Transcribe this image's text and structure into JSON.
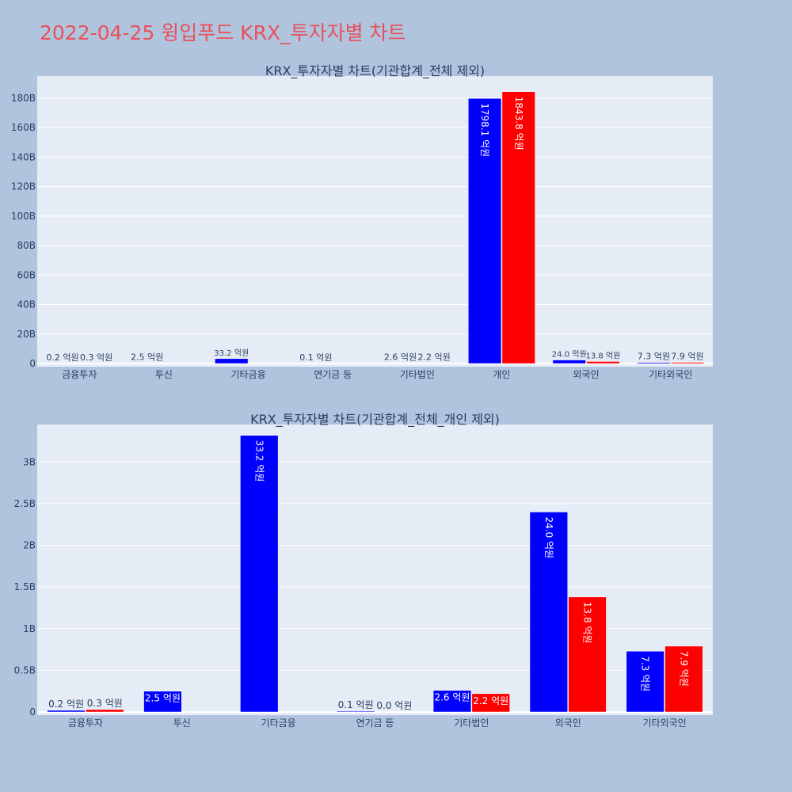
{
  "page_title": "2022-04-25 윙입푸드 KRX_투자자별 차트",
  "colors": {
    "background": "#b0c4de",
    "plot_bg": "#e5ecf6",
    "title": "#e8505b",
    "series1": "#0000ff",
    "series2": "#ff0000"
  },
  "chart_data": [
    {
      "type": "bar",
      "title": "KRX_투자자별 차트(기관합계_전체 제외)",
      "xlabel": "",
      "ylabel": "",
      "categories": [
        "금융투자",
        "투신",
        "기타금융",
        "연기금 등",
        "기타법인",
        "개인",
        "외국인",
        "기타외국인"
      ],
      "ylim": [
        0,
        195
      ],
      "y_unit_scale": "B",
      "yticks": [
        0,
        20,
        40,
        60,
        80,
        100,
        120,
        140,
        160,
        180
      ],
      "ytick_labels": [
        "0",
        "20B",
        "40B",
        "60B",
        "80B",
        "100B",
        "120B",
        "140B",
        "160B",
        "180B"
      ],
      "grid": true,
      "series": [
        {
          "color": "#0000ff",
          "values": [
            0.02,
            0.25,
            3.32,
            0.01,
            0.26,
            179.81,
            2.4,
            0.73
          ],
          "labels": [
            "0.2 억원",
            "2.5 억원",
            "33.2 억원",
            "0.1 억원",
            "2.6 억원",
            "1798.1 억원",
            "24.0 억원",
            "7.3 억원"
          ]
        },
        {
          "color": "#ff0000",
          "values": [
            0.03,
            null,
            null,
            null,
            0.22,
            184.38,
            1.38,
            0.79
          ],
          "labels": [
            "0.3 억원",
            "",
            "",
            "",
            "2.2 억원",
            "1843.8 억원",
            "13.8 억원",
            "7.9 억원"
          ]
        }
      ]
    },
    {
      "type": "bar",
      "title": "KRX_투자자별 차트(기관합계_전체_개인 제외)",
      "xlabel": "",
      "ylabel": "",
      "categories": [
        "금융투자",
        "투신",
        "기타금융",
        "연기금 등",
        "기타법인",
        "외국인",
        "기타외국인"
      ],
      "ylim": [
        0,
        3.45
      ],
      "y_unit_scale": "B",
      "yticks": [
        0,
        0.5,
        1,
        1.5,
        2,
        2.5,
        3
      ],
      "ytick_labels": [
        "0",
        "0.5B",
        "1B",
        "1.5B",
        "2B",
        "2.5B",
        "3B"
      ],
      "grid": true,
      "series": [
        {
          "color": "#0000ff",
          "values": [
            0.02,
            0.25,
            3.32,
            0.01,
            0.26,
            2.4,
            0.73
          ],
          "labels": [
            "0.2 억원",
            "2.5 억원",
            "33.2 억원",
            "0.1 억원",
            "2.6 억원",
            "24.0 억원",
            "7.3 억원"
          ]
        },
        {
          "color": "#ff0000",
          "values": [
            0.03,
            null,
            null,
            0.0,
            0.22,
            1.38,
            0.79
          ],
          "labels": [
            "0.3 억원",
            "",
            "",
            "0.0 억원",
            "2.2 억원",
            "13.8 억원",
            "7.9 억원"
          ]
        }
      ]
    }
  ]
}
